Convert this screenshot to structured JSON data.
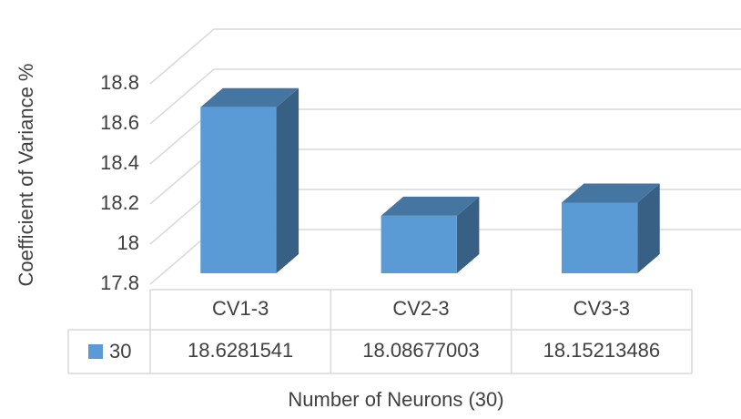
{
  "chart_data": {
    "type": "bar3d",
    "x_label": "Number of Neurons (30)",
    "y_label": "Coefficient of Variance %",
    "categories": [
      "CV1-3",
      "CV2-3",
      "CV3-3"
    ],
    "series": [
      {
        "name": "30",
        "color": "#5b9bd5",
        "values": [
          18.6281541,
          18.08677003,
          18.15213486
        ]
      }
    ],
    "ylim": [
      17.8,
      18.8
    ],
    "yticks": [
      17.8,
      18,
      18.2,
      18.4,
      18.6,
      18.8
    ],
    "grid": true
  }
}
